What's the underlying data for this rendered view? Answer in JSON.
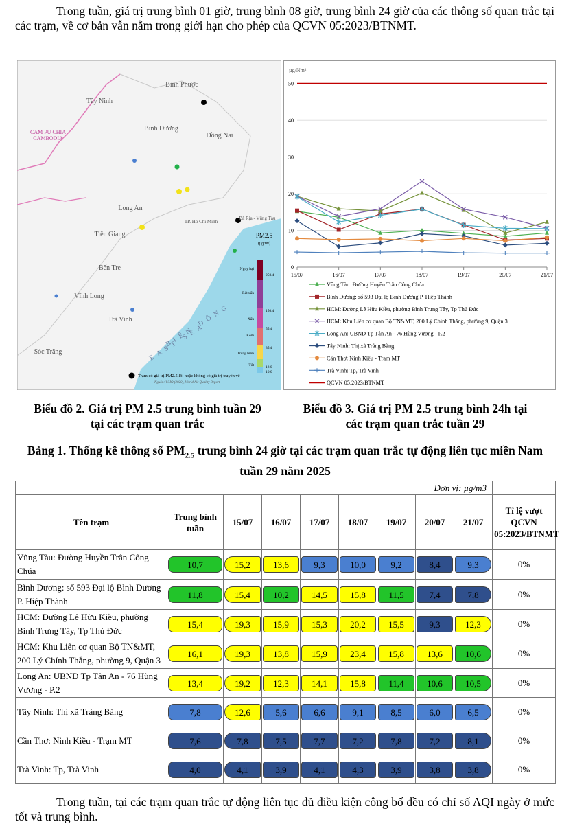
{
  "intro": "Trong tuần, giá trị trung bình 01 giờ, trung bình 08 giờ, trung bình 24 giờ của các thông số quan trắc tại các trạm, về cơ bản vẫn nằm trong giới hạn cho phép của QCVN 05:2023/BTNMT.",
  "map": {
    "labels": [
      "Tây Ninh",
      "Bình Phước",
      "CAM PU CHIA",
      "CAMBODIA",
      "Bình Dương",
      "Đồng Nai",
      "Long An",
      "TP. Hồ Chí Minh",
      "Bà Rịa - Vũng Tàu",
      "Tiền Giang",
      "Bến Tre",
      "Vĩnh Long",
      "Trà Vinh",
      "Sóc Trăng",
      "BIỂN ĐÔNG",
      "EAST SEA"
    ],
    "legend_title": "PM2.5",
    "legend_unit": "(µg/m³)",
    "levels": [
      "Nguy hại",
      "Rất xấu",
      "Xấu",
      "Kém",
      "Trung bình",
      "Tốt"
    ],
    "level_values": [
      "250.4",
      "150.4",
      "55.4",
      "35.4",
      "12.0",
      "10.0"
    ],
    "footnote": "Trạm có giá trị PM2.5 lỗi hoặc không có giá trị truyền về",
    "source": "Nguồn: WHO (2020), World Air Quality Report"
  },
  "chart_data": {
    "type": "line",
    "y_label": "µg/Nm³",
    "categories": [
      "15/07",
      "16/07",
      "17/07",
      "18/07",
      "19/07",
      "20/07",
      "21/07"
    ],
    "ylim": [
      0,
      55
    ],
    "yticks": [
      0,
      10,
      20,
      30,
      40,
      50
    ],
    "grid": true,
    "series": [
      {
        "name": "Vũng Tàu: Đường Huyền Trân Công Chúa",
        "color": "#4caf50",
        "marker": "triangle",
        "values": [
          15.2,
          13.6,
          9.3,
          10.0,
          9.2,
          8.4,
          9.3
        ]
      },
      {
        "name": "Bình Dương: số 593 Đại lộ Bình Dương  P. Hiệp Thành",
        "color": "#a3262a",
        "marker": "square",
        "values": [
          15.4,
          10.2,
          14.5,
          15.8,
          11.5,
          7.4,
          7.8
        ]
      },
      {
        "name": "HCM: Đường Lê Hữu Kiều, phường Bình Trưng Tây, Tp Thủ Đức",
        "color": "#77933c",
        "marker": "triangle",
        "values": [
          19.3,
          15.9,
          15.3,
          20.2,
          15.5,
          9.3,
          12.3
        ]
      },
      {
        "name": "HCM: Khu Liên cơ quan Bộ TN&MT, 200 Lý Chính Thắng, phường 9, Quận 3",
        "color": "#7a5ca8",
        "marker": "x",
        "values": [
          19.3,
          13.8,
          15.9,
          23.4,
          15.8,
          13.6,
          10.6
        ]
      },
      {
        "name": "Long An: UBND Tp Tân An - 76 Hùng Vương - P.2",
        "color": "#4bacc6",
        "marker": "star",
        "values": [
          19.2,
          12.3,
          14.1,
          15.8,
          11.4,
          10.6,
          10.5
        ]
      },
      {
        "name": "Tây Ninh: Thị xã Trảng Bàng",
        "color": "#2c4d7e",
        "marker": "diamond",
        "values": [
          12.6,
          5.6,
          6.6,
          9.1,
          8.5,
          6.0,
          6.5
        ]
      },
      {
        "name": "Cần Thơ: Ninh Kiều - Trạm MT",
        "color": "#e48a3e",
        "marker": "circle",
        "values": [
          7.8,
          7.5,
          7.7,
          7.2,
          7.8,
          7.2,
          8.1
        ]
      },
      {
        "name": "Trà Vinh: Tp, Trà Vinh",
        "color": "#4f81bd",
        "marker": "plus",
        "values": [
          4.1,
          3.9,
          4.1,
          4.3,
          3.9,
          3.8,
          3.8
        ]
      },
      {
        "name": "QCVN 05:2023/BTNMT",
        "color": "#c00000",
        "marker": "none",
        "values": [
          50,
          50,
          50,
          50,
          50,
          50,
          50
        ]
      }
    ]
  },
  "captions": [
    "Biểu đồ 2. Giá trị PM 2.5 trung bình tuần 29 tại các trạm quan trắc",
    "Biểu đồ 3. Giá trị PM 2.5 trung bình 24h tại các trạm quan trắc tuần 29"
  ],
  "table_title": [
    "Bảng 1. Thống kê thông số PM",
    "2.5",
    " trung bình 24 giờ tại các trạm quan trắc tự động liên tục miền Nam tuần 29 năm 2025"
  ],
  "table": {
    "unit": "Đơn vị: µg/m3",
    "headers": [
      "Tên trạm",
      "Trung bình tuần",
      "15/07",
      "16/07",
      "17/07",
      "18/07",
      "19/07",
      "20/07",
      "21/07",
      "Tỉ lệ vượt QCVN 05:2023/BTNMT"
    ],
    "palette": {
      "y": "#ffff00",
      "g": "#22c42a",
      "b": "#4a7fd0",
      "d": "#2f4f8c"
    },
    "rows": [
      {
        "name": "Vũng Tàu: Đường Huyền Trân Công Chúa",
        "cells": [
          "10,7",
          "15,2",
          "13,6",
          "9,3",
          "10,0",
          "9,2",
          "8,4",
          "9,3"
        ],
        "levels": [
          "g",
          "y",
          "y",
          "b",
          "b",
          "b",
          "d",
          "b"
        ],
        "ratio": "0%"
      },
      {
        "name": "Bình Dương: số 593 Đại lộ Bình Dương P. Hiệp Thành",
        "cells": [
          "11,8",
          "15,4",
          "10,2",
          "14,5",
          "15,8",
          "11,5",
          "7,4",
          "7,8"
        ],
        "levels": [
          "g",
          "y",
          "g",
          "y",
          "y",
          "g",
          "d",
          "d"
        ],
        "ratio": "0%"
      },
      {
        "name": "HCM: Đường Lê Hữu Kiều, phường Bình Trưng Tây, Tp Thủ Đức",
        "cells": [
          "15,4",
          "19,3",
          "15,9",
          "15,3",
          "20,2",
          "15,5",
          "9,3",
          "12,3"
        ],
        "levels": [
          "y",
          "y",
          "y",
          "y",
          "y",
          "y",
          "d",
          "y"
        ],
        "ratio": "0%"
      },
      {
        "name": "HCM: Khu Liên cơ quan Bộ TN&MT, 200 Lý Chính Thắng, phường 9, Quận 3",
        "cells": [
          "16,1",
          "19,3",
          "13,8",
          "15,9",
          "23,4",
          "15,8",
          "13,6",
          "10,6"
        ],
        "levels": [
          "y",
          "y",
          "y",
          "y",
          "y",
          "y",
          "y",
          "g"
        ],
        "ratio": "0%"
      },
      {
        "name": "Long An: UBND Tp Tân An - 76 Hùng Vương - P.2",
        "cells": [
          "13,4",
          "19,2",
          "12,3",
          "14,1",
          "15,8",
          "11,4",
          "10,6",
          "10,5"
        ],
        "levels": [
          "y",
          "y",
          "y",
          "y",
          "y",
          "g",
          "g",
          "g"
        ],
        "ratio": "0%"
      },
      {
        "name": "Tây Ninh: Thị xã Trảng Bàng",
        "cells": [
          "7,8",
          "12,6",
          "5,6",
          "6,6",
          "9,1",
          "8,5",
          "6,0",
          "6,5"
        ],
        "levels": [
          "b",
          "y",
          "b",
          "b",
          "b",
          "b",
          "b",
          "b"
        ],
        "ratio": "0%"
      },
      {
        "name": "Cần Thơ: Ninh Kiều - Trạm MT",
        "cells": [
          "7,6",
          "7,8",
          "7,5",
          "7,7",
          "7,2",
          "7,8",
          "7,2",
          "8,1"
        ],
        "levels": [
          "d",
          "d",
          "d",
          "d",
          "d",
          "d",
          "d",
          "d"
        ],
        "ratio": "0%"
      },
      {
        "name": "Trà Vinh: Tp, Trà Vinh",
        "cells": [
          "4,0",
          "4,1",
          "3,9",
          "4,1",
          "4,3",
          "3,9",
          "3,8",
          "3,8"
        ],
        "levels": [
          "d",
          "d",
          "d",
          "d",
          "d",
          "d",
          "d",
          "d"
        ],
        "ratio": "0%"
      }
    ]
  },
  "closing": "Trong tuần, tại các trạm quan trắc tự động liên tục đủ điều kiện công bố đều có chỉ số AQI ngày ở mức tốt và trung bình."
}
